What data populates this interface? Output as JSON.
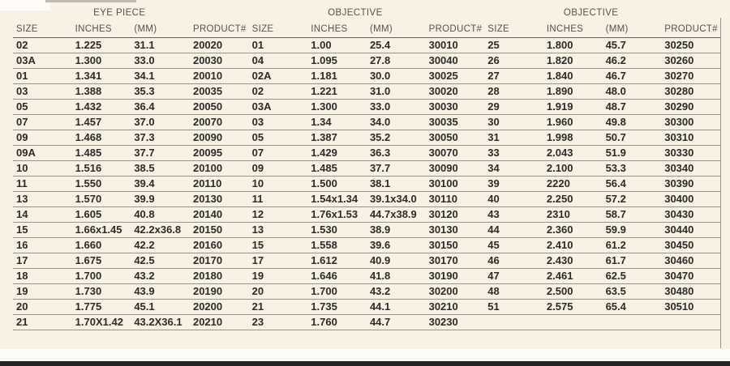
{
  "colors": {
    "bg": "#f7f2e4",
    "text": "#2d2b27",
    "header_text": "#57524b",
    "line": "#98948c",
    "header_line": "#64605a",
    "bottom_bar": "#242424",
    "bottom_strip": "#fbfbf8"
  },
  "table": {
    "group_labels": [
      "EYE PIECE",
      "OBJECTIVE",
      "OBJECTIVE"
    ],
    "columns": [
      "SIZE",
      "INCHES",
      "(MM)",
      "PRODUCT#"
    ],
    "rows": [
      [
        "02",
        "1.225",
        "31.1",
        "20020",
        "01",
        "1.00",
        "25.4",
        "30010",
        "25",
        "1.800",
        "45.7",
        "30250"
      ],
      [
        "03A",
        "1.300",
        "33.0",
        "20030",
        "04",
        "1.095",
        "27.8",
        "30040",
        "26",
        "1.820",
        "46.2",
        "30260"
      ],
      [
        "01",
        "1.341",
        "34.1",
        "20010",
        "02A",
        "1.181",
        "30.0",
        "30025",
        "27",
        "1.840",
        "46.7",
        "30270"
      ],
      [
        "03",
        "1.388",
        "35.3",
        "20035",
        "02",
        "1.221",
        "31.0",
        "30020",
        "28",
        "1.890",
        "48.0",
        "30280"
      ],
      [
        "05",
        "1.432",
        "36.4",
        "20050",
        "03A",
        "1.300",
        "33.0",
        "30030",
        "29",
        "1.919",
        "48.7",
        "30290"
      ],
      [
        "07",
        "1.457",
        "37.0",
        "20070",
        "03",
        "1.34",
        "34.0",
        "30035",
        "30",
        "1.960",
        "49.8",
        "30300"
      ],
      [
        "09",
        "1.468",
        "37.3",
        "20090",
        "05",
        "1.387",
        "35.2",
        "30050",
        "31",
        "1.998",
        "50.7",
        "30310"
      ],
      [
        "09A",
        "1.485",
        "37.7",
        "20095",
        "07",
        "1.429",
        "36.3",
        "30070",
        "33",
        "2.043",
        "51.9",
        "30330"
      ],
      [
        "10",
        "1.516",
        "38.5",
        "20100",
        "09",
        "1.485",
        "37.7",
        "30090",
        "34",
        "2.100",
        "53.3",
        "30340"
      ],
      [
        "11",
        "1.550",
        "39.4",
        "20110",
        "10",
        "1.500",
        "38.1",
        "30100",
        "39",
        "2220",
        "56.4",
        "30390"
      ],
      [
        "13",
        "1.570",
        "39.9",
        "20130",
        "11",
        "1.54x1.34",
        "39.1x34.0",
        "30110",
        "40",
        "2.250",
        "57.2",
        "30400"
      ],
      [
        "14",
        "1.605",
        "40.8",
        "20140",
        "12",
        "1.76x1.53",
        "44.7x38.9",
        "30120",
        "43",
        "2310",
        "58.7",
        "30430"
      ],
      [
        "15",
        "1.66x1.45",
        "42.2x36.8",
        "20150",
        "13",
        "1.530",
        "38.9",
        "30130",
        "44",
        "2.360",
        "59.9",
        "30440"
      ],
      [
        "16",
        "1.660",
        "42.2",
        "20160",
        "15",
        "1.558",
        "39.6",
        "30150",
        "45",
        "2.410",
        "61.2",
        "30450"
      ],
      [
        "17",
        "1.675",
        "42.5",
        "20170",
        "17",
        "1.612",
        "40.9",
        "30170",
        "46",
        "2.430",
        "61.7",
        "30460"
      ],
      [
        "18",
        "1.700",
        "43.2",
        "20180",
        "19",
        "1.646",
        "41.8",
        "30190",
        "47",
        "2.461",
        "62.5",
        "30470"
      ],
      [
        "19",
        "1.730",
        "43.9",
        "20190",
        "20",
        "1.700",
        "43.2",
        "30200",
        "48",
        "2.500",
        "63.5",
        "30480"
      ],
      [
        "20",
        "1.775",
        "45.1",
        "20200",
        "21",
        "1.735",
        "44.1",
        "30210",
        "51",
        "2.575",
        "65.4",
        "30510"
      ],
      [
        "21",
        "1.70X1.42",
        "43.2X36.1",
        "20210",
        "23",
        "1.760",
        "44.7",
        "30230",
        "",
        "",
        "",
        ""
      ]
    ]
  }
}
